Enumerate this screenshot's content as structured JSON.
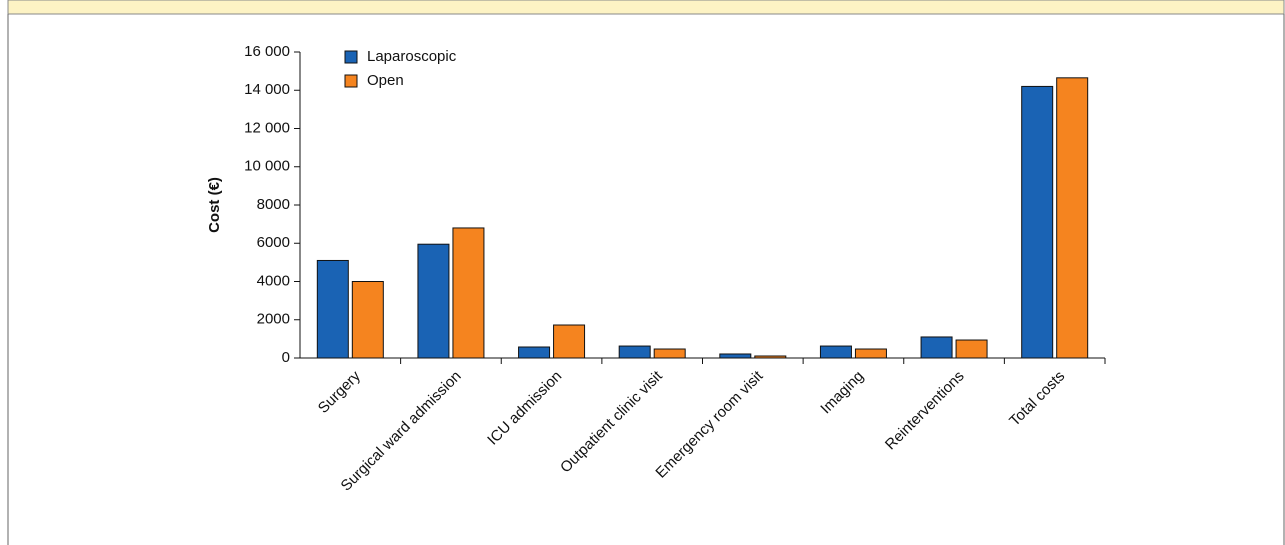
{
  "chart_data": {
    "type": "bar",
    "y_label": "Cost (€)",
    "categories": [
      "Surgery",
      "Surgical ward admission",
      "ICU admission",
      "Outpatient clinic visit",
      "Emergency room visit",
      "Imaging",
      "Reinterventions",
      "Total costs"
    ],
    "series": [
      {
        "name": "Laparoscopic",
        "color": "#1a63b4",
        "values": [
          5100,
          5950,
          575,
          625,
          210,
          625,
          1100,
          14200
        ]
      },
      {
        "name": "Open",
        "color": "#f5841f",
        "values": [
          4000,
          6800,
          1725,
          470,
          105,
          470,
          940,
          14650
        ]
      }
    ],
    "ylim": [
      0,
      16000
    ],
    "yticks": [
      0,
      2000,
      4000,
      6000,
      8000,
      {
        "value": 10000,
        "label": "10 000"
      },
      {
        "value": 12000,
        "label": "12 000"
      },
      {
        "value": 14000,
        "label": "14 000"
      },
      {
        "value": 16000,
        "label": "16 000"
      }
    ],
    "legend": "upper-left"
  }
}
